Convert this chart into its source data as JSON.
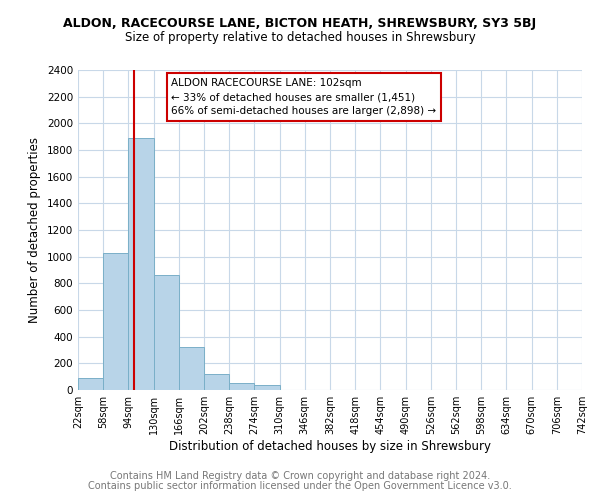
{
  "title": "ALDON, RACECOURSE LANE, BICTON HEATH, SHREWSBURY, SY3 5BJ",
  "subtitle": "Size of property relative to detached houses in Shrewsbury",
  "xlabel": "Distribution of detached houses by size in Shrewsbury",
  "ylabel": "Number of detached properties",
  "footer_lines": [
    "Contains HM Land Registry data © Crown copyright and database right 2024.",
    "Contains public sector information licensed under the Open Government Licence v3.0."
  ],
  "bin_edges": [
    22,
    58,
    94,
    130,
    166,
    202,
    238,
    274,
    310,
    346,
    382,
    418,
    454,
    490,
    526,
    562,
    598,
    634,
    670,
    706,
    742
  ],
  "bin_counts": [
    90,
    1030,
    1890,
    860,
    325,
    120,
    55,
    40,
    0,
    0,
    0,
    0,
    0,
    0,
    0,
    0,
    0,
    0,
    0,
    0
  ],
  "bar_color": "#b8d4e8",
  "bar_edge_color": "#7aafc8",
  "vertical_line_x": 102,
  "vertical_line_color": "#cc0000",
  "annotation_line1": "ALDON RACECOURSE LANE: 102sqm",
  "annotation_line2": "← 33% of detached houses are smaller (1,451)",
  "annotation_line3": "66% of semi-detached houses are larger (2,898) →",
  "ylim": [
    0,
    2400
  ],
  "yticks": [
    0,
    200,
    400,
    600,
    800,
    1000,
    1200,
    1400,
    1600,
    1800,
    2000,
    2200,
    2400
  ],
  "tick_labels": [
    "22sqm",
    "58sqm",
    "94sqm",
    "130sqm",
    "166sqm",
    "202sqm",
    "238sqm",
    "274sqm",
    "310sqm",
    "346sqm",
    "382sqm",
    "418sqm",
    "454sqm",
    "490sqm",
    "526sqm",
    "562sqm",
    "598sqm",
    "634sqm",
    "670sqm",
    "706sqm",
    "742sqm"
  ],
  "background_color": "#ffffff",
  "grid_color": "#c8d8e8",
  "title_fontsize": 9,
  "subtitle_fontsize": 8.5,
  "axis_label_fontsize": 8.5,
  "tick_fontsize": 7,
  "footer_fontsize": 7
}
